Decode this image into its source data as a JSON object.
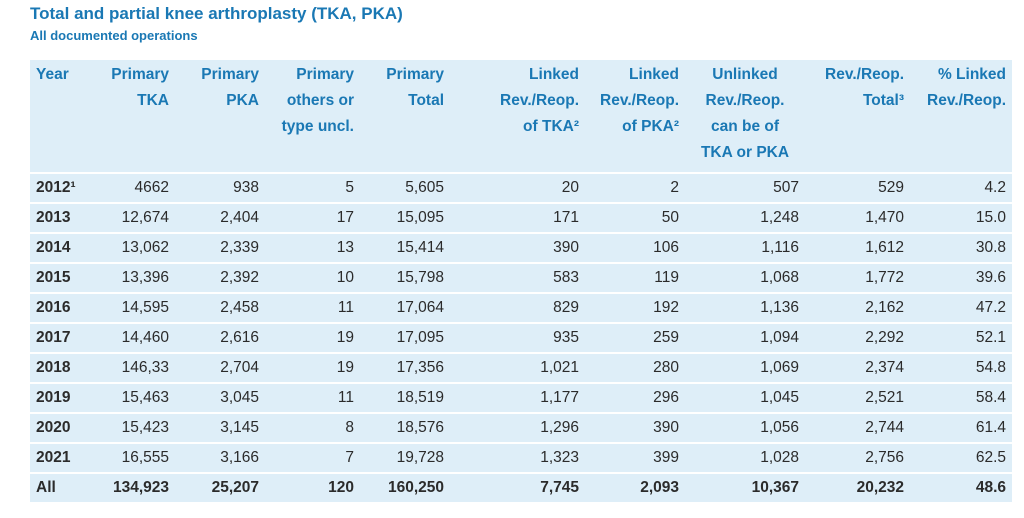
{
  "header": {
    "title": "Total and partial knee arthroplasty (TKA, PKA)",
    "subtitle": "All documented operations"
  },
  "table": {
    "columns": [
      [
        "Year"
      ],
      [
        "Primary",
        "TKA"
      ],
      [
        "Primary",
        "PKA"
      ],
      [
        "Primary",
        "others or",
        "type uncl."
      ],
      [
        "Primary",
        "Total"
      ],
      [
        "Linked",
        "Rev./Reop.",
        "of TKA²"
      ],
      [
        "Linked",
        "Rev./Reop.",
        "of PKA²"
      ],
      [
        "Unlinked",
        "Rev./Reop.",
        "can be of",
        "TKA or PKA"
      ],
      [
        "Rev./Reop.",
        "Total³"
      ],
      [
        "% Linked",
        "Rev./Reop."
      ]
    ],
    "rows": [
      [
        "2012¹",
        "4662",
        "938",
        "5",
        "5,605",
        "20",
        "2",
        "507",
        "529",
        "4.2"
      ],
      [
        "2013",
        "12,674",
        "2,404",
        "17",
        "15,095",
        "171",
        "50",
        "1,248",
        "1,470",
        "15.0"
      ],
      [
        "2014",
        "13,062",
        "2,339",
        "13",
        "15,414",
        "390",
        "106",
        "1,116",
        "1,612",
        "30.8"
      ],
      [
        "2015",
        "13,396",
        "2,392",
        "10",
        "15,798",
        "583",
        "119",
        "1,068",
        "1,772",
        "39.6"
      ],
      [
        "2016",
        "14,595",
        "2,458",
        "11",
        "17,064",
        "829",
        "192",
        "1,136",
        "2,162",
        "47.2"
      ],
      [
        "2017",
        "14,460",
        "2,616",
        "19",
        "17,095",
        "935",
        "259",
        "1,094",
        "2,292",
        "52.1"
      ],
      [
        "2018",
        "146,33",
        "2,704",
        "19",
        "17,356",
        "1,021",
        "280",
        "1,069",
        "2,374",
        "54.8"
      ],
      [
        "2019",
        "15,463",
        "3,045",
        "11",
        "18,519",
        "1,177",
        "296",
        "1,045",
        "2,521",
        "58.4"
      ],
      [
        "2020",
        "15,423",
        "3,145",
        "8",
        "18,576",
        "1,296",
        "390",
        "1,056",
        "2,744",
        "61.4"
      ],
      [
        "2021",
        "16,555",
        "3,166",
        "7",
        "19,728",
        "1,323",
        "399",
        "1,028",
        "2,756",
        "62.5"
      ],
      [
        "All",
        "134,923",
        "25,207",
        "120",
        "160,250",
        "7,745",
        "2,093",
        "10,367",
        "20,232",
        "48.6"
      ]
    ]
  }
}
